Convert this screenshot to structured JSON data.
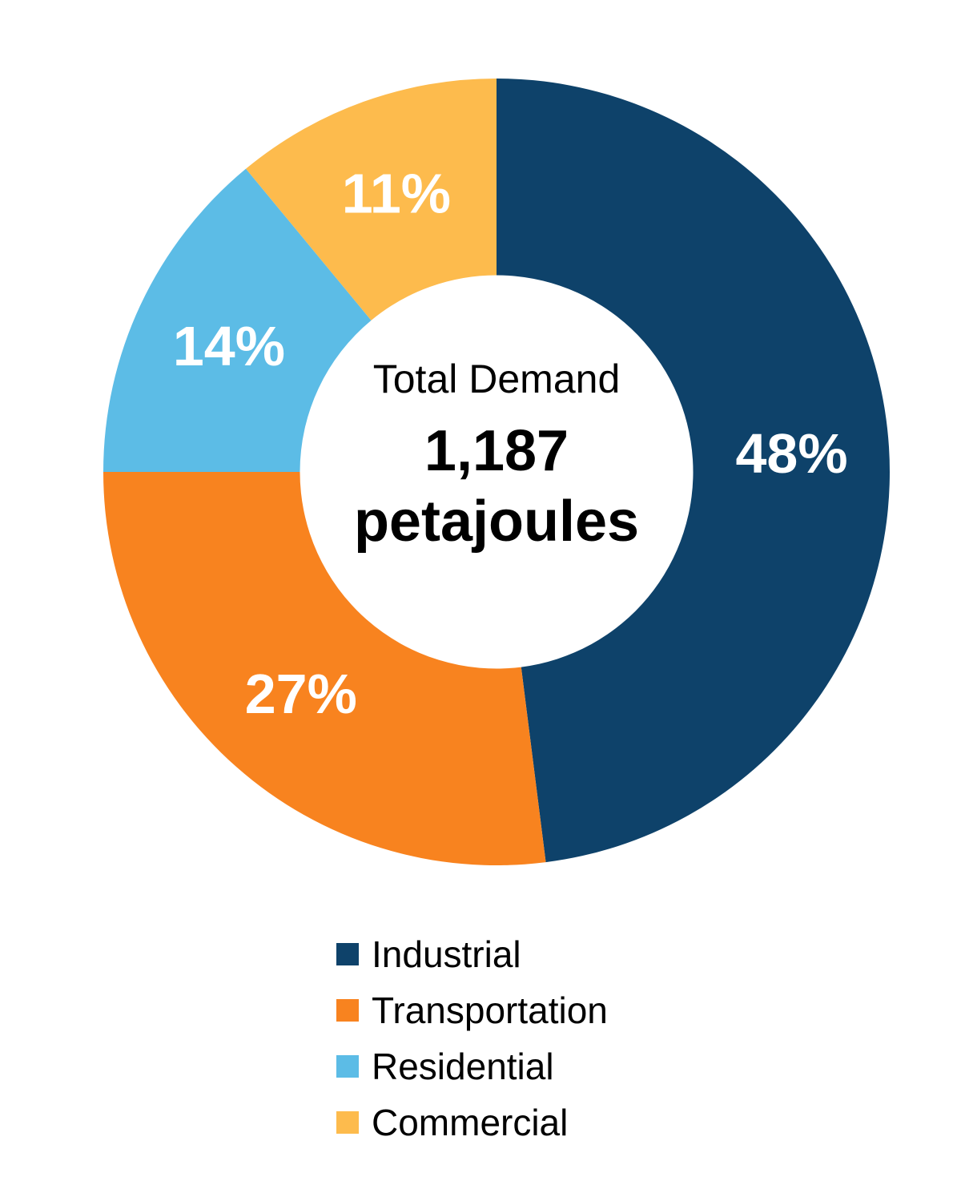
{
  "page": {
    "background_color": "#FFFFFF"
  },
  "chart_data": {
    "type": "pie",
    "subtype": "donut",
    "start_angle": "top",
    "direction": "clockwise",
    "donut_hole_ratio": 0.5,
    "legend_position": "bottom",
    "grid": "off",
    "categories": [
      "Industrial",
      "Transportation",
      "Residential",
      "Commercial"
    ],
    "values": [
      48,
      27,
      14,
      11
    ],
    "value_unit": "%",
    "series": [
      {
        "label": "Industrial",
        "value_pct": 48,
        "data_label": "48%",
        "color": "#0E426A"
      },
      {
        "label": "Transportation",
        "value_pct": 27,
        "data_label": "27%",
        "color": "#F8831F"
      },
      {
        "label": "Residential",
        "value_pct": 14,
        "data_label": "14%",
        "color": "#5CBCE6"
      },
      {
        "label": "Commercial",
        "value_pct": 11,
        "data_label": "11%",
        "color": "#FDBB4D"
      }
    ],
    "center_text": {
      "title": "Total Demand",
      "value": "1,187",
      "unit": "petajoules"
    },
    "data_label_color": "#FFFFFF",
    "legend_text_color": "#000000"
  }
}
